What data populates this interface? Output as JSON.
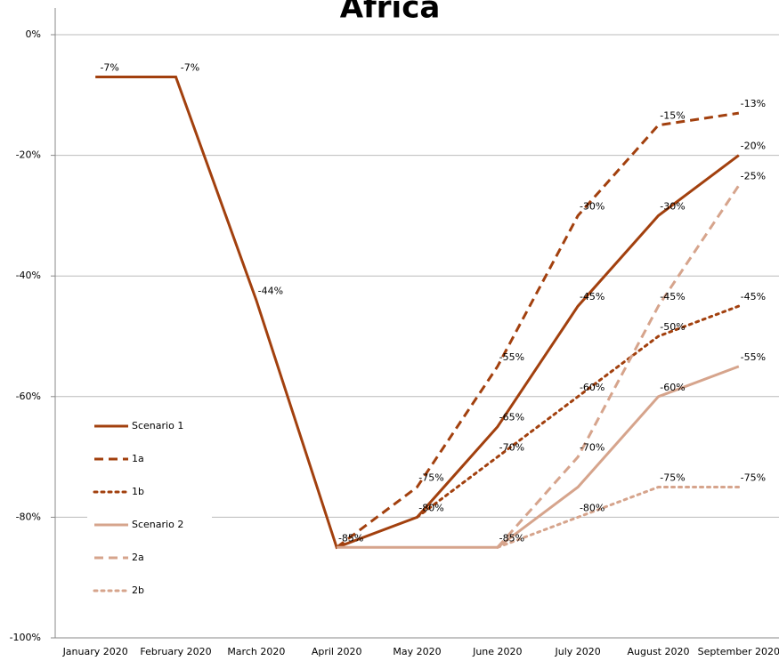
{
  "chart_data": {
    "type": "line",
    "title": "Africa",
    "categories": [
      "January 2020",
      "February 2020",
      "March 2020",
      "April 2020",
      "May 2020",
      "June 2020",
      "July 2020",
      "August 2020",
      "September 2020"
    ],
    "ylim": [
      -100,
      0
    ],
    "yticks": [
      {
        "value": 0,
        "label": "0%"
      },
      {
        "value": -20,
        "label": "-20%"
      },
      {
        "value": -40,
        "label": "-40%"
      },
      {
        "value": -60,
        "label": "-60%"
      },
      {
        "value": -80,
        "label": "-80%"
      },
      {
        "value": -100,
        "label": "-100%"
      }
    ],
    "grid": true,
    "series": [
      {
        "name": "Scenario 1",
        "color": "#a2400e",
        "dash": "solid",
        "values": [
          -7,
          -7,
          -44,
          -85,
          -80,
          -65,
          -45,
          -30,
          -20
        ],
        "value_labels": [
          "-7%",
          "-7%",
          "-44%",
          "-85%",
          "-80%",
          "-65%",
          "-45%",
          "-30%",
          "-20%"
        ]
      },
      {
        "name": "1a",
        "color": "#a2400e",
        "dash": "dashed",
        "values": [
          null,
          null,
          null,
          -85,
          -75,
          -55,
          -30,
          -15,
          -13
        ],
        "value_labels": [
          null,
          null,
          null,
          null,
          "-75%",
          "-55%",
          "-30%",
          "-15%",
          "-13%"
        ]
      },
      {
        "name": "1b",
        "color": "#a2400e",
        "dash": "dotted",
        "values": [
          null,
          null,
          null,
          null,
          -80,
          -70,
          -60,
          -50,
          -45
        ],
        "value_labels": [
          null,
          null,
          null,
          null,
          null,
          "-70%",
          "-60%",
          "-50%",
          "-45%"
        ]
      },
      {
        "name": "Scenario 2",
        "color": "#d6a48c",
        "dash": "solid",
        "values": [
          null,
          null,
          null,
          -85,
          -85,
          -85,
          -75,
          -60,
          -55
        ],
        "value_labels": [
          null,
          null,
          null,
          null,
          null,
          "-85%",
          null,
          "-60%",
          "-55%"
        ]
      },
      {
        "name": "2a",
        "color": "#d6a48c",
        "dash": "dashed",
        "values": [
          null,
          null,
          null,
          null,
          null,
          -85,
          -70,
          -45,
          -25
        ],
        "value_labels": [
          null,
          null,
          null,
          null,
          null,
          null,
          "-70%",
          "-45%",
          "-25%"
        ]
      },
      {
        "name": "2b",
        "color": "#d6a48c",
        "dash": "dotted",
        "values": [
          null,
          null,
          null,
          null,
          null,
          -85,
          -80,
          -75,
          -75
        ],
        "value_labels": [
          null,
          null,
          null,
          null,
          null,
          null,
          "-80%",
          "-75%",
          "-75%"
        ]
      }
    ]
  }
}
